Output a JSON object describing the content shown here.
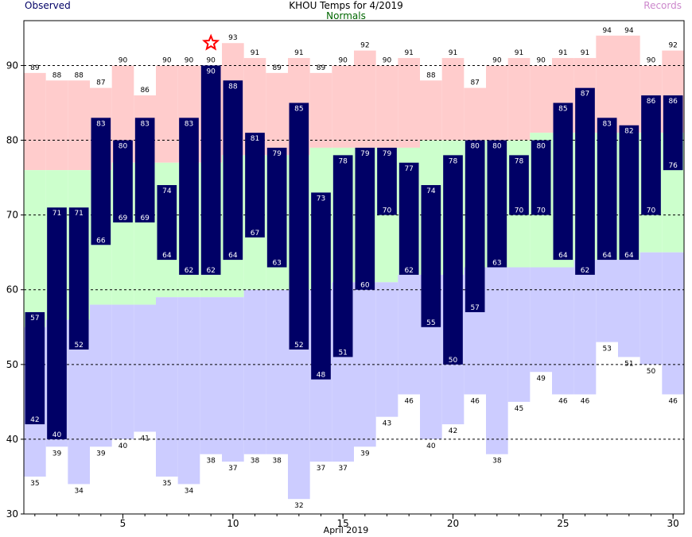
{
  "chart_data": {
    "type": "bar",
    "title": "KHOU Temps for 4/2019",
    "legend": {
      "observed": "Observed",
      "normals": "Normals",
      "records": "Records",
      "placement": "top"
    },
    "xlabel": "April 2019",
    "x_ticks": [
      5,
      10,
      15,
      20,
      25,
      30
    ],
    "y_ticks": [
      30,
      40,
      50,
      60,
      70,
      80,
      90
    ],
    "ylim": [
      30,
      96
    ],
    "xlim": [
      0.5,
      30.5
    ],
    "grid": "dashed horizontal",
    "colors": {
      "observed": "#000066",
      "observed_label": "#000066",
      "normals_label": "#006600",
      "records_label": "#cc88cc",
      "record_band": "#ffcccc",
      "normal_band": "#ccffcc",
      "low_band": "#ccccff",
      "star": "#ff0000"
    },
    "marker": {
      "type": "star",
      "day": 9,
      "meaning": "record high"
    },
    "series": [
      {
        "name": "Observed",
        "days": [
          1,
          2,
          3,
          4,
          5,
          6,
          7,
          8,
          9,
          10,
          11,
          12,
          13,
          14,
          15,
          16,
          17,
          18,
          19,
          20,
          21,
          22,
          23,
          24,
          25,
          26,
          27,
          28,
          29,
          30
        ],
        "high": [
          57,
          71,
          71,
          83,
          80,
          83,
          74,
          83,
          90,
          88,
          81,
          79,
          85,
          73,
          78,
          79,
          79,
          77,
          74,
          78,
          80,
          80,
          78,
          80,
          85,
          87,
          83,
          82,
          86,
          86
        ],
        "low": [
          42,
          40,
          52,
          66,
          69,
          69,
          64,
          62,
          62,
          64,
          67,
          63,
          52,
          48,
          51,
          60,
          70,
          62,
          55,
          50,
          57,
          63,
          70,
          70,
          64,
          62,
          64,
          64,
          70,
          76
        ]
      },
      {
        "name": "Records",
        "high": [
          89,
          88,
          88,
          87,
          90,
          86,
          90,
          90,
          90,
          93,
          91,
          89,
          91,
          89,
          90,
          92,
          90,
          91,
          88,
          91,
          87,
          90,
          91,
          90,
          91,
          91,
          94,
          94,
          90,
          92
        ],
        "low": [
          35,
          39,
          34,
          39,
          40,
          41,
          35,
          34,
          38,
          37,
          38,
          38,
          32,
          37,
          37,
          39,
          43,
          46,
          40,
          42,
          46,
          38,
          45,
          49,
          46,
          46,
          53,
          51,
          50,
          46
        ]
      },
      {
        "name": "Normals",
        "high": [
          76,
          76,
          76,
          76,
          77,
          77,
          77,
          77,
          77,
          78,
          78,
          78,
          78,
          79,
          79,
          79,
          79,
          79,
          80,
          80,
          80,
          80,
          80,
          81,
          81,
          81,
          81,
          81,
          81,
          81
        ],
        "low": [
          55,
          56,
          56,
          58,
          58,
          58,
          59,
          59,
          59,
          59,
          60,
          60,
          60,
          60,
          61,
          61,
          61,
          62,
          62,
          62,
          63,
          63,
          63,
          63,
          63,
          64,
          64,
          64,
          65,
          65
        ]
      }
    ]
  }
}
